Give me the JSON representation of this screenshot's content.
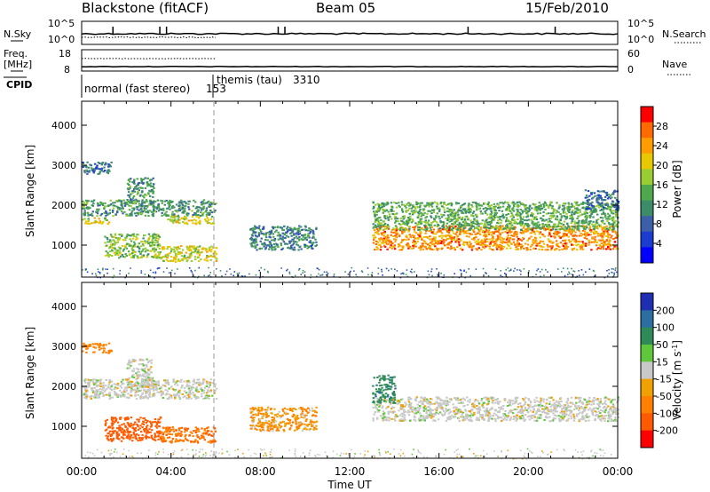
{
  "header": {
    "station": "Blackstone (fitACF)",
    "beam": "Beam 05",
    "date": "15/Feb/2010"
  },
  "nsky_panel": {
    "left_label": "N.Sky",
    "right_label": "N.Search",
    "top_tick": "10^5",
    "bottom_tick": "10^0"
  },
  "freq_panel": {
    "left_label_1": "Freq.",
    "left_label_2": "[MHz]",
    "left_top_tick": "18",
    "left_bottom_tick": "8",
    "right_label": "Nave",
    "right_top_tick": "60",
    "right_bottom_tick": "0"
  },
  "cpid_panel": {
    "label": "CPID",
    "segments": [
      {
        "name": "normal (fast stereo)",
        "id": "153",
        "start_hour": 0
      },
      {
        "name": "themis (tau)",
        "id": "3310",
        "start_hour": 6
      }
    ]
  },
  "x_axis": {
    "label": "Time UT",
    "ticks": [
      "00:00",
      "04:00",
      "08:00",
      "12:00",
      "16:00",
      "20:00",
      "00:00"
    ]
  },
  "colors": {
    "power_scale": [
      "#0000ff",
      "#1a3cd0",
      "#3b5fa8",
      "#3c8c6a",
      "#4fa84c",
      "#9acd32",
      "#e8c800",
      "#ff9c00",
      "#ff6a00",
      "#ff0000"
    ],
    "velocity_scale": [
      "#1e2fb4",
      "#2c6ea0",
      "#2e8b57",
      "#5ec83a",
      "#c8c8c8",
      "#f0a000",
      "#ff8000",
      "#ff5a00",
      "#ff0000"
    ]
  },
  "chart_data": [
    {
      "type": "heatmap",
      "name": "power",
      "ylabel": "Slant Range [km]",
      "xlabel": "",
      "xlim": [
        0,
        24
      ],
      "ylim": [
        200,
        4600
      ],
      "yticks": [
        "1000",
        "2000",
        "3000",
        "4000"
      ],
      "colorbar": {
        "label": "Power [dB]",
        "ticks": [
          "4",
          "8",
          "12",
          "16",
          "20",
          "24",
          "28"
        ],
        "range": [
          0,
          32
        ]
      },
      "regions": [
        {
          "t0": 0.0,
          "t1": 1.3,
          "r0": 2800,
          "r1": 3100,
          "level": 8
        },
        {
          "t0": 0.0,
          "t1": 6.0,
          "r0": 1750,
          "r1": 2150,
          "level": 12
        },
        {
          "t0": 0.0,
          "t1": 1.2,
          "r0": 1550,
          "r1": 1700,
          "level": 20
        },
        {
          "t0": 2.0,
          "t1": 3.2,
          "r0": 2000,
          "r1": 2700,
          "level": 12
        },
        {
          "t0": 1.0,
          "t1": 3.5,
          "r0": 700,
          "r1": 1300,
          "level": 16
        },
        {
          "t0": 3.5,
          "t1": 6.0,
          "r0": 600,
          "r1": 1000,
          "level": 20
        },
        {
          "t0": 3.8,
          "t1": 5.9,
          "r0": 1550,
          "r1": 1750,
          "level": 20
        },
        {
          "t0": 7.5,
          "t1": 10.5,
          "r0": 900,
          "r1": 1500,
          "level": 10
        },
        {
          "t0": 13.0,
          "t1": 24.0,
          "r0": 900,
          "r1": 1500,
          "level": 26
        },
        {
          "t0": 13.0,
          "t1": 24.0,
          "r0": 1400,
          "r1": 2100,
          "level": 14
        },
        {
          "t0": 22.5,
          "t1": 24.0,
          "r0": 1900,
          "r1": 2400,
          "level": 8
        }
      ]
    },
    {
      "type": "heatmap",
      "name": "velocity",
      "ylabel": "Slant Range [km]",
      "xlabel": "Time UT",
      "xlim": [
        0,
        24
      ],
      "ylim": [
        200,
        4600
      ],
      "yticks": [
        "1000",
        "2000",
        "3000",
        "4000"
      ],
      "colorbar": {
        "label": "Velocity [m s^-1]",
        "ticks": [
          "200",
          "100",
          "50",
          "15",
          "-15",
          "-50",
          "-100",
          "-200"
        ]
      },
      "regions": [
        {
          "t0": 0.0,
          "t1": 1.3,
          "r0": 2850,
          "r1": 3100,
          "vel": -50
        },
        {
          "t0": 0.0,
          "t1": 6.0,
          "r0": 1700,
          "r1": 2200,
          "vel": 0
        },
        {
          "t0": 2.0,
          "t1": 3.2,
          "r0": 2000,
          "r1": 2700,
          "vel": 0
        },
        {
          "t0": 1.0,
          "t1": 3.5,
          "r0": 650,
          "r1": 1250,
          "vel": -100
        },
        {
          "t0": 3.5,
          "t1": 6.0,
          "r0": 600,
          "r1": 1000,
          "vel": -70
        },
        {
          "t0": 7.5,
          "t1": 10.5,
          "r0": 900,
          "r1": 1500,
          "vel": -30
        },
        {
          "t0": 13.0,
          "t1": 24.0,
          "r0": 1150,
          "r1": 1750,
          "vel": 0
        },
        {
          "t0": 13.0,
          "t1": 14.0,
          "r0": 1600,
          "r1": 2300,
          "vel": 60
        }
      ]
    }
  ]
}
